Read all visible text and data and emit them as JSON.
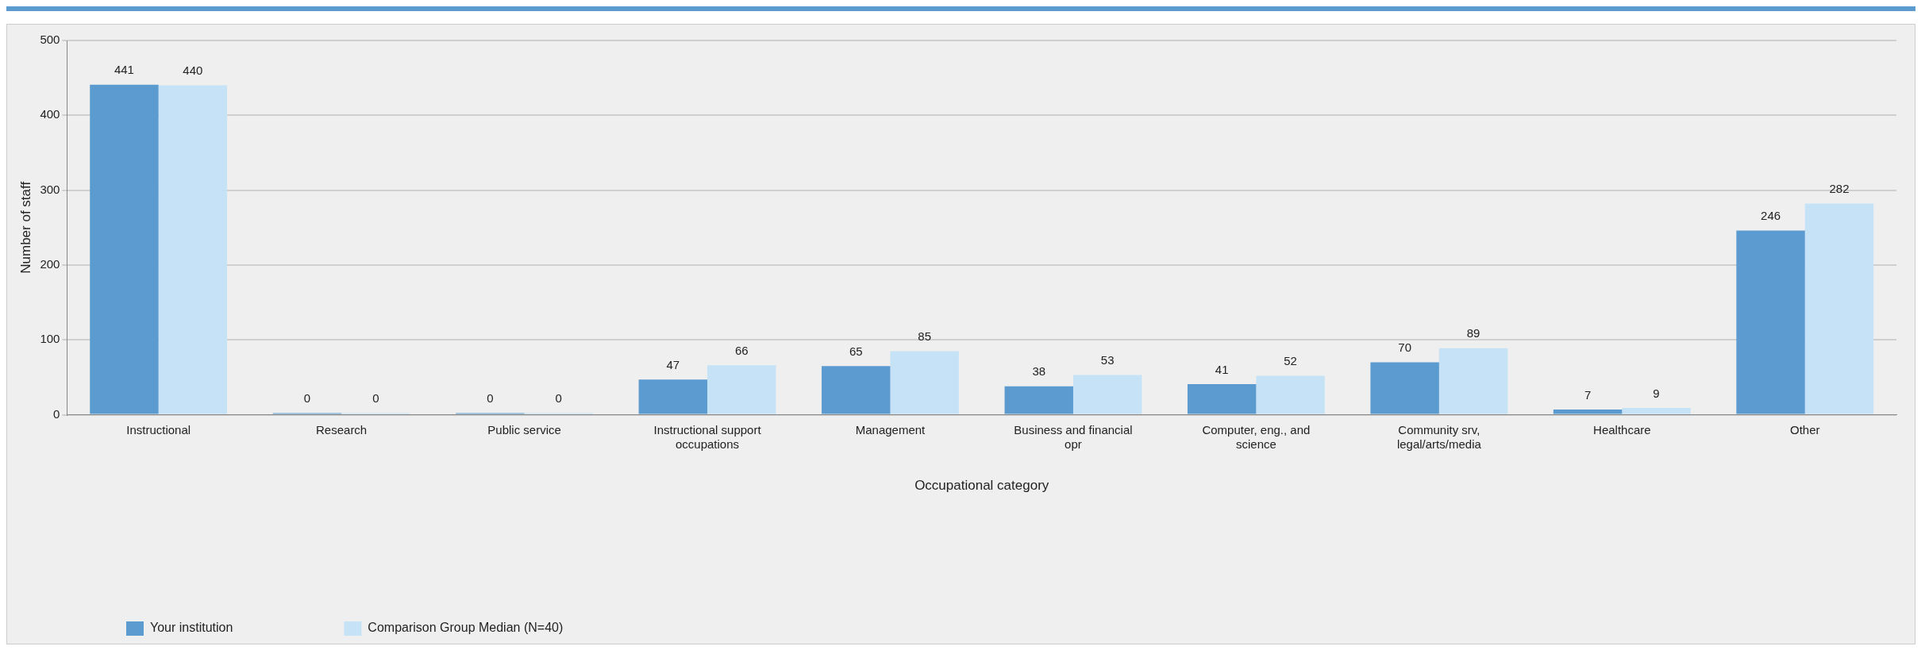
{
  "chart_data": {
    "type": "bar",
    "xlabel": "Occupational category",
    "ylabel": "Number of staff",
    "categories": [
      "Instructional",
      "Research",
      "Public service",
      "Instructional support occupations",
      "Management",
      "Business and financial opr",
      "Computer, eng., and science",
      "Community srv, legal/arts/media",
      "Healthcare",
      "Other"
    ],
    "series": [
      {
        "name": "Your institution",
        "color": "#5b9bd0",
        "values": [
          441,
          0,
          0,
          47,
          65,
          38,
          41,
          70,
          7,
          246
        ]
      },
      {
        "name": "Comparison Group Median (N=40)",
        "color": "#c6e2f6",
        "values": [
          440,
          0,
          0,
          66,
          85,
          53,
          52,
          89,
          9,
          282
        ]
      }
    ],
    "ylim": [
      0,
      500
    ],
    "yticks": [
      0,
      100,
      200,
      300,
      400,
      500
    ],
    "grid": "y",
    "data_labels": true,
    "legend": "bottom left"
  }
}
